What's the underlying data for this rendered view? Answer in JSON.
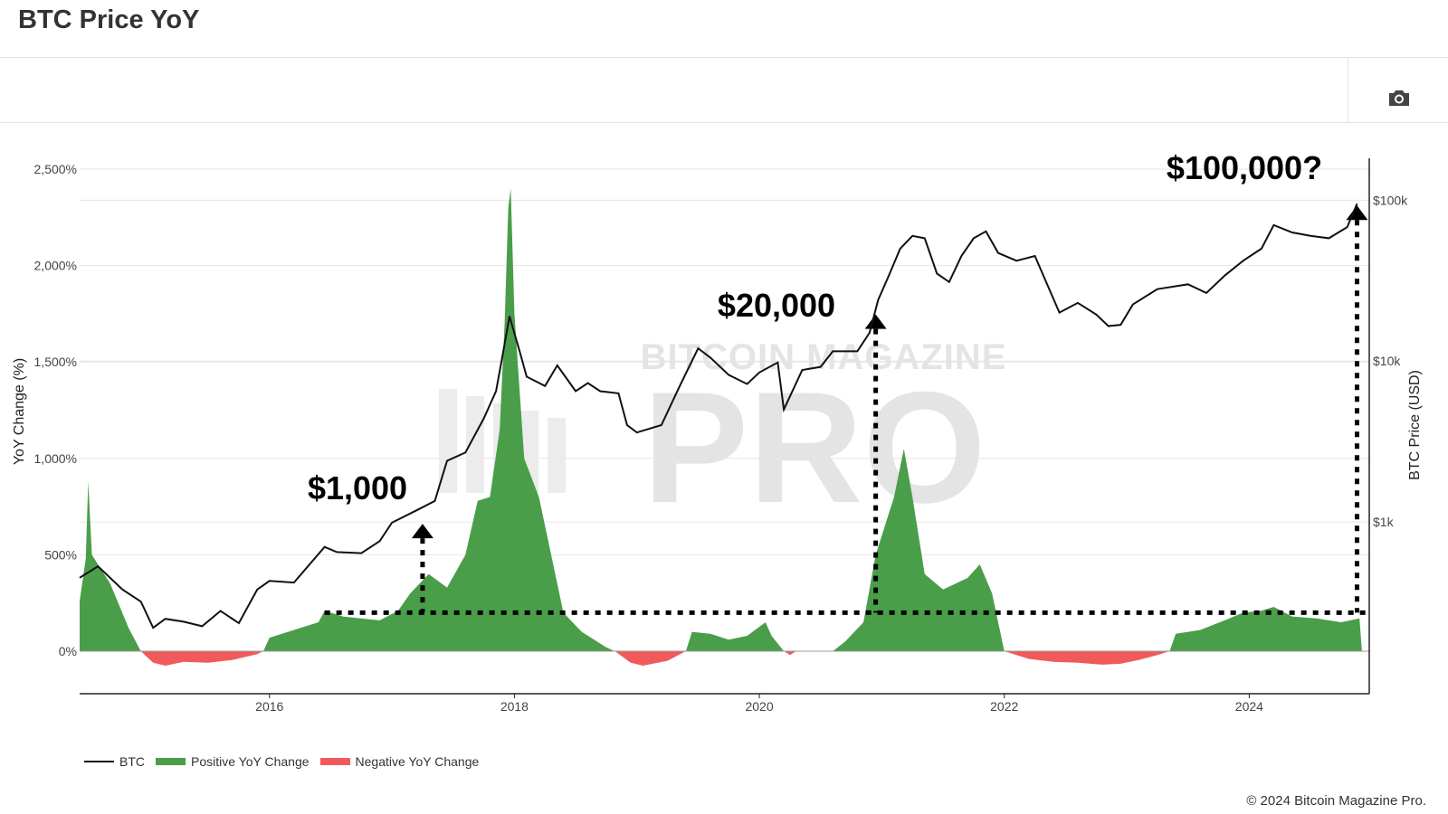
{
  "page": {
    "title": "BTC Price YoY",
    "copyright": "© 2024 Bitcoin Magazine Pro."
  },
  "toolbar": {
    "camera_icon": "camera-icon"
  },
  "colors": {
    "btc": "#111111",
    "positive": "#4a9e4a",
    "negative": "#f05a5a",
    "grid": "#e6e6e6"
  },
  "chart_data": {
    "type": "line+area",
    "title": "BTC Price YoY",
    "y_left": {
      "label": "YoY Change (%)",
      "range": [
        -100,
        2500
      ],
      "ticks": [
        {
          "v": 0,
          "t": "0%"
        },
        {
          "v": 500,
          "t": "500%"
        },
        {
          "v": 1000,
          "t": "1,000%"
        },
        {
          "v": 1500,
          "t": "1,500%"
        },
        {
          "v": 2000,
          "t": "2,000%"
        },
        {
          "v": 2500,
          "t": "2,500%"
        }
      ]
    },
    "y_right": {
      "label": "BTC Price (USD)",
      "scale": "log",
      "range": [
        100,
        150000
      ],
      "ticks": [
        {
          "v": 1000,
          "t": "$1k"
        },
        {
          "v": 10000,
          "t": "$10k"
        },
        {
          "v": 100000,
          "t": "$100k"
        }
      ]
    },
    "x": {
      "range": [
        2014.45,
        2024.98
      ],
      "ticks": [
        {
          "v": 2016,
          "t": "2016"
        },
        {
          "v": 2018,
          "t": "2018"
        },
        {
          "v": 2020,
          "t": "2020"
        },
        {
          "v": 2022,
          "t": "2022"
        },
        {
          "v": 2024,
          "t": "2024"
        }
      ]
    },
    "series": [
      {
        "name": "BTC",
        "kind": "price",
        "points": [
          [
            2014.45,
            450
          ],
          [
            2014.6,
            530
          ],
          [
            2014.8,
            380
          ],
          [
            2014.95,
            320
          ],
          [
            2015.05,
            220
          ],
          [
            2015.15,
            250
          ],
          [
            2015.3,
            240
          ],
          [
            2015.45,
            225
          ],
          [
            2015.6,
            280
          ],
          [
            2015.75,
            235
          ],
          [
            2015.9,
            380
          ],
          [
            2016.0,
            430
          ],
          [
            2016.2,
            420
          ],
          [
            2016.45,
            700
          ],
          [
            2016.55,
            650
          ],
          [
            2016.75,
            640
          ],
          [
            2016.9,
            760
          ],
          [
            2017.0,
            990
          ],
          [
            2017.2,
            1180
          ],
          [
            2017.35,
            1350
          ],
          [
            2017.45,
            2400
          ],
          [
            2017.6,
            2700
          ],
          [
            2017.75,
            4400
          ],
          [
            2017.85,
            6500
          ],
          [
            2017.9,
            10500
          ],
          [
            2017.96,
            19000
          ],
          [
            2018.05,
            11000
          ],
          [
            2018.1,
            8000
          ],
          [
            2018.25,
            7000
          ],
          [
            2018.35,
            9400
          ],
          [
            2018.5,
            6500
          ],
          [
            2018.6,
            7300
          ],
          [
            2018.7,
            6500
          ],
          [
            2018.85,
            6300
          ],
          [
            2018.92,
            4000
          ],
          [
            2019.0,
            3600
          ],
          [
            2019.2,
            4000
          ],
          [
            2019.35,
            7000
          ],
          [
            2019.5,
            12000
          ],
          [
            2019.6,
            10500
          ],
          [
            2019.75,
            8200
          ],
          [
            2019.9,
            7200
          ],
          [
            2020.0,
            8500
          ],
          [
            2020.15,
            9800
          ],
          [
            2020.2,
            5000
          ],
          [
            2020.35,
            8800
          ],
          [
            2020.5,
            9200
          ],
          [
            2020.6,
            11500
          ],
          [
            2020.8,
            11500
          ],
          [
            2020.9,
            15000
          ],
          [
            2020.97,
            24000
          ],
          [
            2021.05,
            33000
          ],
          [
            2021.15,
            50000
          ],
          [
            2021.25,
            60000
          ],
          [
            2021.35,
            58000
          ],
          [
            2021.45,
            35000
          ],
          [
            2021.55,
            31000
          ],
          [
            2021.65,
            45000
          ],
          [
            2021.75,
            58000
          ],
          [
            2021.85,
            64000
          ],
          [
            2021.95,
            47000
          ],
          [
            2022.1,
            42000
          ],
          [
            2022.25,
            45000
          ],
          [
            2022.35,
            30000
          ],
          [
            2022.45,
            20000
          ],
          [
            2022.6,
            23000
          ],
          [
            2022.75,
            19500
          ],
          [
            2022.85,
            16500
          ],
          [
            2022.95,
            16800
          ],
          [
            2023.05,
            22500
          ],
          [
            2023.25,
            28000
          ],
          [
            2023.5,
            30000
          ],
          [
            2023.65,
            26500
          ],
          [
            2023.8,
            34000
          ],
          [
            2023.95,
            42000
          ],
          [
            2024.1,
            50000
          ],
          [
            2024.2,
            70000
          ],
          [
            2024.35,
            63000
          ],
          [
            2024.5,
            60000
          ],
          [
            2024.65,
            58000
          ],
          [
            2024.8,
            68000
          ],
          [
            2024.88,
            95000
          ]
        ]
      },
      {
        "name": "Positive YoY Change",
        "kind": "area-positive",
        "points": [
          [
            2014.45,
            260
          ],
          [
            2014.5,
            480
          ],
          [
            2014.52,
            880
          ],
          [
            2014.55,
            500
          ],
          [
            2014.7,
            350
          ],
          [
            2014.85,
            120
          ],
          [
            2014.95,
            0
          ],
          [
            2015.95,
            0
          ],
          [
            2016.0,
            70
          ],
          [
            2016.2,
            110
          ],
          [
            2016.4,
            150
          ],
          [
            2016.45,
            210
          ],
          [
            2016.6,
            180
          ],
          [
            2016.9,
            160
          ],
          [
            2017.05,
            210
          ],
          [
            2017.15,
            300
          ],
          [
            2017.3,
            400
          ],
          [
            2017.45,
            330
          ],
          [
            2017.6,
            500
          ],
          [
            2017.7,
            780
          ],
          [
            2017.8,
            800
          ],
          [
            2017.88,
            1150
          ],
          [
            2017.92,
            1700
          ],
          [
            2017.95,
            2300
          ],
          [
            2017.97,
            2400
          ],
          [
            2018.0,
            1750
          ],
          [
            2018.08,
            1000
          ],
          [
            2018.2,
            800
          ],
          [
            2018.3,
            500
          ],
          [
            2018.4,
            200
          ],
          [
            2018.55,
            100
          ],
          [
            2018.75,
            20
          ],
          [
            2018.82,
            0
          ],
          [
            2019.4,
            0
          ],
          [
            2019.45,
            100
          ],
          [
            2019.6,
            90
          ],
          [
            2019.75,
            60
          ],
          [
            2019.9,
            80
          ],
          [
            2020.05,
            150
          ],
          [
            2020.1,
            80
          ],
          [
            2020.2,
            0
          ],
          [
            2020.6,
            0
          ],
          [
            2020.7,
            50
          ],
          [
            2020.85,
            150
          ],
          [
            2020.95,
            500
          ],
          [
            2021.1,
            800
          ],
          [
            2021.18,
            1050
          ],
          [
            2021.25,
            800
          ],
          [
            2021.35,
            400
          ],
          [
            2021.5,
            320
          ],
          [
            2021.7,
            380
          ],
          [
            2021.8,
            450
          ],
          [
            2021.9,
            300
          ],
          [
            2022.0,
            0
          ],
          [
            2023.35,
            0
          ],
          [
            2023.4,
            90
          ],
          [
            2023.6,
            110
          ],
          [
            2023.8,
            160
          ],
          [
            2023.95,
            200
          ],
          [
            2024.1,
            210
          ],
          [
            2024.2,
            230
          ],
          [
            2024.35,
            180
          ],
          [
            2024.55,
            170
          ],
          [
            2024.75,
            150
          ],
          [
            2024.9,
            170
          ],
          [
            2024.92,
            0
          ]
        ]
      },
      {
        "name": "Negative YoY Change",
        "kind": "area-negative",
        "points": [
          [
            2014.95,
            0
          ],
          [
            2015.05,
            -60
          ],
          [
            2015.15,
            -75
          ],
          [
            2015.3,
            -55
          ],
          [
            2015.5,
            -60
          ],
          [
            2015.7,
            -45
          ],
          [
            2015.9,
            -15
          ],
          [
            2015.95,
            0
          ],
          [
            2018.82,
            0
          ],
          [
            2018.95,
            -60
          ],
          [
            2019.05,
            -75
          ],
          [
            2019.25,
            -50
          ],
          [
            2019.4,
            0
          ],
          [
            2020.2,
            0
          ],
          [
            2020.25,
            -20
          ],
          [
            2020.3,
            0
          ],
          [
            2022.0,
            0
          ],
          [
            2022.2,
            -40
          ],
          [
            2022.4,
            -55
          ],
          [
            2022.6,
            -60
          ],
          [
            2022.8,
            -70
          ],
          [
            2022.95,
            -65
          ],
          [
            2023.1,
            -45
          ],
          [
            2023.25,
            -20
          ],
          [
            2023.35,
            0
          ]
        ]
      }
    ],
    "annotations": [
      {
        "label": "$1,000",
        "x": 2017.25,
        "price": 1000
      },
      {
        "label": "$20,000",
        "x": 2020.95,
        "price": 20000
      },
      {
        "label": "$100,000?",
        "x": 2024.88,
        "price": 95000
      }
    ],
    "baseline_pct": 200,
    "baseline_x": [
      2016.45,
      2024.98
    ],
    "watermark": "BITCOIN MAGAZINE PRO",
    "legend": [
      "BTC",
      "Positive YoY Change",
      "Negative YoY Change"
    ],
    "legend_position": "bottom-left"
  }
}
